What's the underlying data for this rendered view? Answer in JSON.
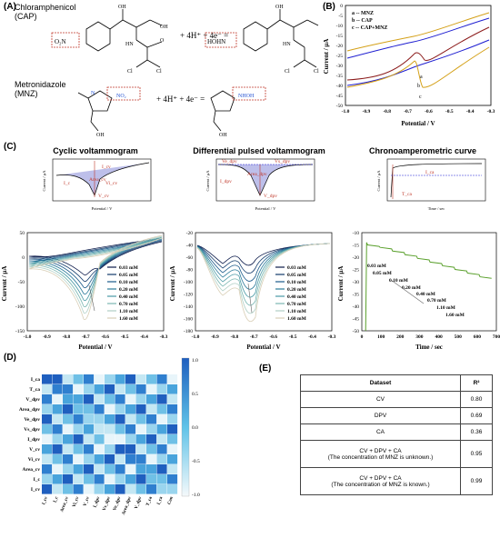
{
  "panels": {
    "A": "(A)",
    "B": "(B)",
    "C": "(C)",
    "D": "(D)",
    "E": "(E)"
  },
  "panel_a": {
    "cap_name": "Chloramphenicol",
    "cap_abbr": "(CAP)",
    "mnz_name": "Metronidazole",
    "mnz_abbr": "(MNZ)",
    "reaction_terms": "+ 4H⁺ + 4e⁻ =",
    "groups": {
      "no2": "O₂N",
      "nhoh": "HOHN",
      "no2_r": "NO₂",
      "nhoh_r": "NHOH",
      "oh": "OH",
      "n": "N",
      "o": "O",
      "cl": "Cl",
      "hn": "HN"
    }
  },
  "panel_b": {
    "legend": [
      "a -- MNZ",
      "b -- CAP",
      "c -- CAP+MNZ"
    ],
    "curve_labels": [
      "a",
      "b",
      "c"
    ],
    "xlabel": "Potential / V",
    "ylabel": "Current / μA",
    "xticks": [
      "-1.0",
      "-0.9",
      "-0.8",
      "-0.7",
      "-0.6",
      "-0.5",
      "-0.4",
      "-0.3"
    ],
    "yticks": [
      "0",
      "-5",
      "-10",
      "-15",
      "-20",
      "-25",
      "-30",
      "-35",
      "-40",
      "-45",
      "-50"
    ],
    "colors": {
      "a": "#8b1a1a",
      "b": "#1f1fd1",
      "c": "#d4a017"
    }
  },
  "panel_c": {
    "titles": [
      "Cyclic voltammogram",
      "Differential pulsed voltammogram",
      "Chronoamperometric curve"
    ],
    "schematic_cv": {
      "labels": [
        "I_cv",
        "I_c",
        "Area_cv",
        "Vi_cv",
        "V_cv"
      ],
      "xlabel": "Potential / V",
      "ylabel": "Current / μA"
    },
    "schematic_dpv": {
      "labels": [
        "Ve_dpv",
        "Vs_dpv",
        "I_dpv",
        "Area_dpv",
        "V_dpv"
      ],
      "xlabel": "Potential / V",
      "ylabel": "Current / μA"
    },
    "schematic_ca": {
      "labels": [
        "I_ca",
        "T_ca"
      ],
      "xlabel": "Time / sec",
      "ylabel": "Current / μA"
    },
    "concentrations": [
      "0.03 mM",
      "0.05 mM",
      "0.10 mM",
      "0.20 mM",
      "0.40 mM",
      "0.70 mM",
      "1.10 mM",
      "1.60 mM"
    ],
    "conc_colors": [
      "#0b1a4a",
      "#123a6b",
      "#1b5a8a",
      "#2a7a9a",
      "#4a9aa6",
      "#7ab7b2",
      "#b0cfc5",
      "#d9cfb6"
    ],
    "cv": {
      "xlabel": "Potential / V",
      "ylabel": "Current / μA",
      "xticks": [
        "-1.0",
        "-0.9",
        "-0.8",
        "-0.7",
        "-0.6",
        "-0.5",
        "-0.4",
        "-0.3"
      ],
      "yticks": [
        "50",
        "0",
        "-50",
        "-100",
        "-150"
      ]
    },
    "dpv": {
      "xlabel": "Potential / V",
      "ylabel": "Current / μA",
      "xticks": [
        "-1.0",
        "-0.9",
        "-0.8",
        "-0.7",
        "-0.6",
        "-0.5",
        "-0.4",
        "-0.3"
      ],
      "yticks": [
        "-20",
        "-40",
        "-60",
        "-80",
        "-100",
        "-120",
        "-140",
        "-160",
        "-180"
      ]
    },
    "ca": {
      "xlabel": "Time / sec",
      "ylabel": "Current / μA",
      "xticks": [
        "0",
        "100",
        "200",
        "300",
        "400",
        "500",
        "600",
        "700"
      ],
      "yticks": [
        "-10",
        "-15",
        "-20",
        "-25",
        "-30",
        "-35",
        "-40",
        "-45",
        "-50"
      ],
      "color": "#5aa02c"
    }
  },
  "panel_d": {
    "features": [
      "I_ca",
      "T_ca",
      "V_dpv",
      "Area_dpv",
      "Ve_dpv",
      "Vs_dpv",
      "I_dpv",
      "V_cv",
      "Vi_cv",
      "Area_cv",
      "I_c",
      "I_cv"
    ],
    "columns": [
      "I_cv",
      "I_c",
      "Area_cv",
      "Vi_cv",
      "V_cv",
      "I_dpv",
      "Vs_dpv",
      "Ve_dpv",
      "Area_dpv",
      "V_dpv",
      "T_ca",
      "I_ca",
      "Con"
    ],
    "colorbar_ticks": [
      "1.0",
      "0.5",
      "0.0",
      "-0.5",
      "-1.0"
    ]
  },
  "panel_e": {
    "header": [
      "Dataset",
      "R²"
    ],
    "rows": [
      [
        "CV",
        "0.80"
      ],
      [
        "DPV",
        "0.69"
      ],
      [
        "CA",
        "0.36"
      ],
      [
        "CV + DPV + CA\n(The concentration of MNZ is unknown.)",
        "0.95"
      ],
      [
        "CV + DPV + CA\n(The concentration of MNZ is known.)",
        "0.99"
      ]
    ]
  }
}
